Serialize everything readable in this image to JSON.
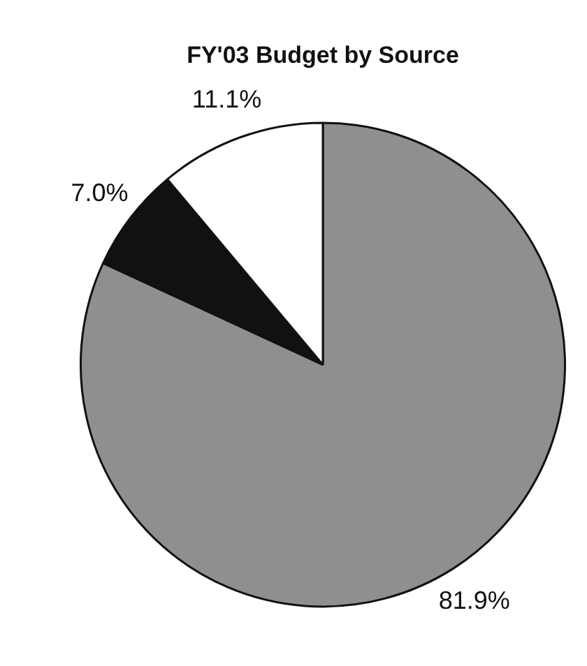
{
  "chart_data": {
    "type": "pie",
    "title": "FY'03 Budget by Source",
    "categories": [
      null,
      null,
      null
    ],
    "values": [
      81.9,
      7.0,
      11.1
    ],
    "colors": [
      "#8f8f8f",
      "#111111",
      "#ffffff"
    ],
    "value_labels": [
      "81.9%",
      "7.0%",
      "11.1%"
    ],
    "legend": false
  }
}
